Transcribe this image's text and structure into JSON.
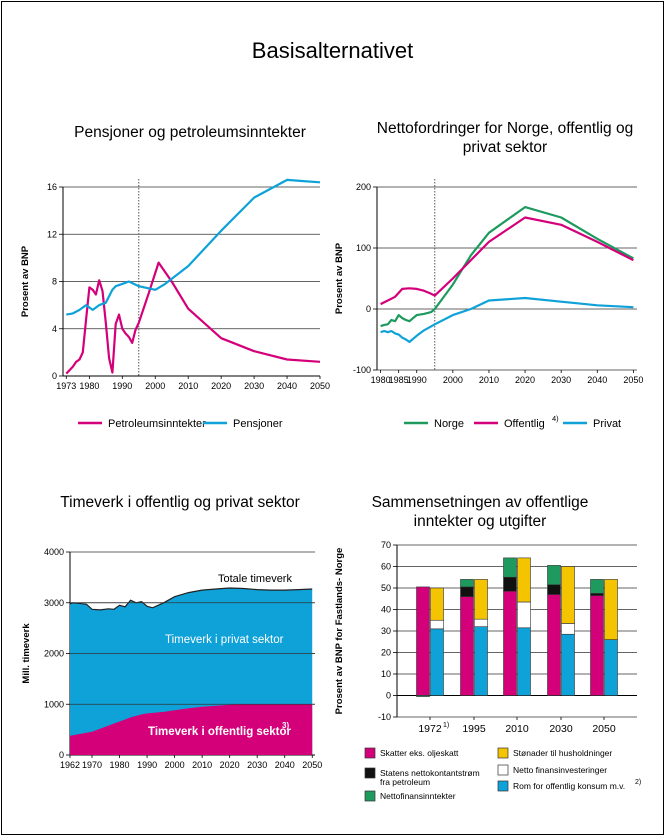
{
  "page_title": "Basisalternativet",
  "colors": {
    "magenta": "#d4007a",
    "blue": "#0ea2d9",
    "green": "#1e9a5e",
    "black": "#111111",
    "white": "#ffffff",
    "yellow": "#f5c400"
  },
  "chart_data": [
    {
      "id": "pensions",
      "type": "line",
      "title": "Pensjoner og petroleumsinntekter",
      "xlabel": "",
      "ylabel": "Prosent av BNP",
      "xlim": [
        1972,
        2050
      ],
      "ylim": [
        0,
        16
      ],
      "x_ticks": [
        1973,
        1980,
        1990,
        2000,
        2010,
        2020,
        2030,
        2040,
        2050
      ],
      "x_tick_labels": [
        "1973",
        "1980",
        "1990",
        "2000",
        "2010",
        "2020",
        "2030",
        "2040",
        "2050"
      ],
      "y_ticks": [
        0,
        4,
        8,
        12,
        16
      ],
      "y_tick_labels": [
        "0",
        "4",
        "8",
        "12",
        "16"
      ],
      "grid": true,
      "vline": 1995,
      "legend": "bottom",
      "series": [
        {
          "name": "Petroleumsinntekter",
          "color": "#d4007a",
          "x": [
            1973,
            1974,
            1975,
            1976,
            1977,
            1978,
            1979,
            1980,
            1981,
            1982,
            1983,
            1984,
            1985,
            1986,
            1987,
            1988,
            1989,
            1990,
            1991,
            1992,
            1993,
            1994,
            1995,
            1998,
            2001,
            2005,
            2010,
            2020,
            2030,
            2040,
            2050
          ],
          "values": [
            0.2,
            0.5,
            0.8,
            1.2,
            1.4,
            2.0,
            4.8,
            7.5,
            7.3,
            6.9,
            8.1,
            7.2,
            4.5,
            1.5,
            0.3,
            4.4,
            5.2,
            4.0,
            3.6,
            3.3,
            2.8,
            3.9,
            4.5,
            7.0,
            9.6,
            8.0,
            5.7,
            3.2,
            2.1,
            1.4,
            1.2
          ]
        },
        {
          "name": "Pensjoner",
          "color": "#0ea2d9",
          "x": [
            1973,
            1975,
            1977,
            1979,
            1981,
            1983,
            1985,
            1987,
            1988,
            1990,
            1992,
            1995,
            2000,
            2003,
            2010,
            2020,
            2030,
            2040,
            2045,
            2050
          ],
          "values": [
            5.2,
            5.3,
            5.6,
            6.0,
            5.6,
            6.0,
            6.2,
            7.3,
            7.6,
            7.8,
            8.0,
            7.6,
            7.3,
            7.8,
            9.3,
            12.3,
            15.1,
            16.6,
            16.5,
            16.4
          ]
        }
      ]
    },
    {
      "id": "netto",
      "type": "line",
      "title": "Nettofordringer for Norge, offentlig og privat sektor",
      "xlabel": "",
      "ylabel": "Prosent av BNP",
      "xlim": [
        1979,
        2051
      ],
      "ylim": [
        -100,
        200
      ],
      "x_ticks": [
        1980,
        1985,
        1990,
        2000,
        2010,
        2020,
        2030,
        2040,
        2050
      ],
      "x_tick_labels": [
        "1980",
        "1985",
        "1990",
        "2000",
        "2010",
        "2020",
        "2030",
        "2040",
        "2050"
      ],
      "y_ticks": [
        -100,
        0,
        100,
        200
      ],
      "y_tick_labels": [
        "-100",
        "0",
        "100",
        "200"
      ],
      "grid": true,
      "vline": 1995,
      "legend": "bottom",
      "series": [
        {
          "name": "Norge",
          "color": "#1e9a5e",
          "x": [
            1980,
            1981,
            1982,
            1983,
            1984,
            1985,
            1986,
            1987,
            1988,
            1989,
            1990,
            1992,
            1994,
            1995,
            2000,
            2005,
            2010,
            2020,
            2030,
            2040,
            2050
          ],
          "values": [
            -28,
            -26,
            -25,
            -18,
            -20,
            -10,
            -15,
            -18,
            -20,
            -15,
            -10,
            -8,
            -5,
            0,
            40,
            88,
            125,
            167,
            150,
            115,
            83
          ]
        },
        {
          "name": "Offentlig",
          "superscript": "4)",
          "color": "#d4007a",
          "x": [
            1980,
            1982,
            1984,
            1986,
            1988,
            1990,
            1992,
            1994,
            1995,
            2000,
            2010,
            2020,
            2030,
            2040,
            2050
          ],
          "values": [
            8,
            14,
            20,
            33,
            34,
            33,
            30,
            25,
            22,
            50,
            110,
            150,
            138,
            110,
            80
          ]
        },
        {
          "name": "Privat",
          "color": "#0ea2d9",
          "x": [
            1980,
            1981,
            1982,
            1983,
            1984,
            1985,
            1986,
            1987,
            1988,
            1990,
            1992,
            1995,
            2000,
            2005,
            2010,
            2020,
            2030,
            2040,
            2050
          ],
          "values": [
            -38,
            -36,
            -38,
            -36,
            -40,
            -42,
            -47,
            -50,
            -54,
            -44,
            -35,
            -25,
            -10,
            0,
            14,
            18,
            12,
            6,
            3
          ]
        }
      ]
    },
    {
      "id": "timeverk",
      "type": "area",
      "title": "Timeverk i offentlig og privat sektor",
      "xlabel": "",
      "ylabel": "Mill. timeverk",
      "xlim": [
        1962,
        2051
      ],
      "ylim": [
        0,
        4000
      ],
      "x_ticks": [
        1962,
        1970,
        1980,
        1990,
        2000,
        2010,
        2020,
        2030,
        2040,
        2050
      ],
      "x_tick_labels": [
        "1962",
        "1970",
        "1980",
        "1990",
        "2000",
        "2010",
        "2020",
        "2030",
        "2040",
        "2050"
      ],
      "y_ticks": [
        0,
        1000,
        2000,
        3000,
        4000
      ],
      "y_tick_labels": [
        "0",
        "1000",
        "2000",
        "3000",
        "4000"
      ],
      "grid": true,
      "annotations": [
        "Totale timeverk",
        "Timeverk i privat sektor",
        "Timeverk i offentlig sektor"
      ],
      "annotation_superscript": "3)",
      "x": [
        1962,
        1963,
        1965,
        1968,
        1970,
        1973,
        1976,
        1978,
        1980,
        1982,
        1984,
        1986,
        1988,
        1990,
        1992,
        1994,
        1996,
        2000,
        2005,
        2010,
        2015,
        2020,
        2025,
        2030,
        2035,
        2040,
        2045,
        2050
      ],
      "series": [
        {
          "name": "Totale timeverk",
          "color": "#0ea2d9",
          "values": [
            2980,
            3000,
            2990,
            2970,
            2870,
            2860,
            2880,
            2870,
            2950,
            2920,
            3050,
            3000,
            3020,
            2930,
            2900,
            2950,
            3000,
            3120,
            3200,
            3250,
            3270,
            3290,
            3280,
            3260,
            3250,
            3250,
            3260,
            3270
          ]
        },
        {
          "name": "Timeverk i offentlig sektor",
          "color": "#d4007a",
          "values": [
            380,
            390,
            410,
            440,
            460,
            520,
            580,
            620,
            660,
            700,
            740,
            770,
            800,
            820,
            830,
            840,
            850,
            880,
            920,
            950,
            970,
            990,
            1000,
            1000,
            1000,
            1000,
            1000,
            1000
          ]
        }
      ]
    },
    {
      "id": "sammensetning",
      "type": "bar",
      "title": "Sammensetningen av offentlige inntekter og utgifter",
      "xlabel": "",
      "ylabel": "Prosent av BNP for Fastlands- Norge",
      "ylim": [
        -10,
        70
      ],
      "y_ticks": [
        -10,
        0,
        10,
        20,
        30,
        40,
        50,
        60,
        70
      ],
      "y_tick_labels": [
        "-10",
        "0",
        "10",
        "20",
        "30",
        "40",
        "50",
        "60",
        "70"
      ],
      "grid": true,
      "categories": [
        "1972",
        "1995",
        "2010",
        "2030",
        "2050"
      ],
      "category_superscripts": [
        "1)",
        "",
        "",
        "",
        ""
      ],
      "legend": "bottom",
      "income_series": [
        {
          "name": "Skatter eks. oljeskatt",
          "color": "#d4007a",
          "values": [
            50.5,
            46,
            48.5,
            47,
            46.5
          ]
        },
        {
          "name": "Statens nettokontantstrøm fra petroleum",
          "color": "#111111",
          "values": [
            0,
            4.5,
            6.5,
            4.5,
            1
          ]
        },
        {
          "name": "Nettofinansinntekter",
          "color": "#1e9a5e",
          "values": [
            -0.5,
            3.5,
            9,
            9,
            6.5
          ]
        }
      ],
      "expenditure_series": [
        {
          "name": "Rom for offentlig  konsum m.v.",
          "superscript": "2)",
          "color": "#0ea2d9",
          "values": [
            31,
            32,
            31.5,
            28.5,
            26
          ]
        },
        {
          "name": "Netto finansinvesteringer",
          "color": "#ffffff",
          "values": [
            4,
            3.5,
            12,
            5,
            0
          ]
        },
        {
          "name": "Stønader til husholdninger",
          "color": "#f5c400",
          "values": [
            15,
            18.5,
            20.5,
            26.5,
            28
          ]
        }
      ]
    }
  ]
}
